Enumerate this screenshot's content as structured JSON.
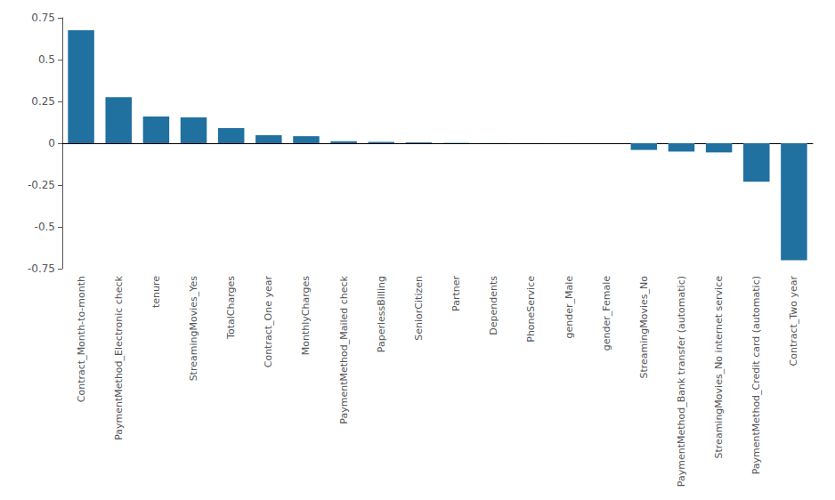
{
  "chart_data": {
    "type": "bar",
    "categories": [
      "Contract_Month-to-month",
      "PaymentMethod_Electronic check",
      "tenure",
      "StreamingMovies_Yes",
      "TotalCharges",
      "Contract_One year",
      "MonthlyCharges",
      "PaymentMethod_Mailed check",
      "PaperlessBilling",
      "SeniorCitizen",
      "Partner",
      "Dependents",
      "PhoneService",
      "gender_Male",
      "gender_Female",
      "StreamingMovies_No",
      "PaymentMethod_Bank transfer (automatic)",
      "StreamingMovies_No internet service",
      "PaymentMethod_Credit card (automatic)",
      "Contract_Two year"
    ],
    "values": [
      0.675,
      0.275,
      0.16,
      0.155,
      0.09,
      0.048,
      0.042,
      0.012,
      0.008,
      0.005,
      0.002,
      0.001,
      0.0005,
      0.0002,
      0.0001,
      -0.04,
      -0.05,
      -0.055,
      -0.23,
      -0.7
    ],
    "color": "#2070a0",
    "ylim": [
      -0.75,
      0.75
    ],
    "yticks": [
      -0.75,
      -0.5,
      -0.25,
      0,
      0.25,
      0.5,
      0.75
    ],
    "grid": false
  }
}
